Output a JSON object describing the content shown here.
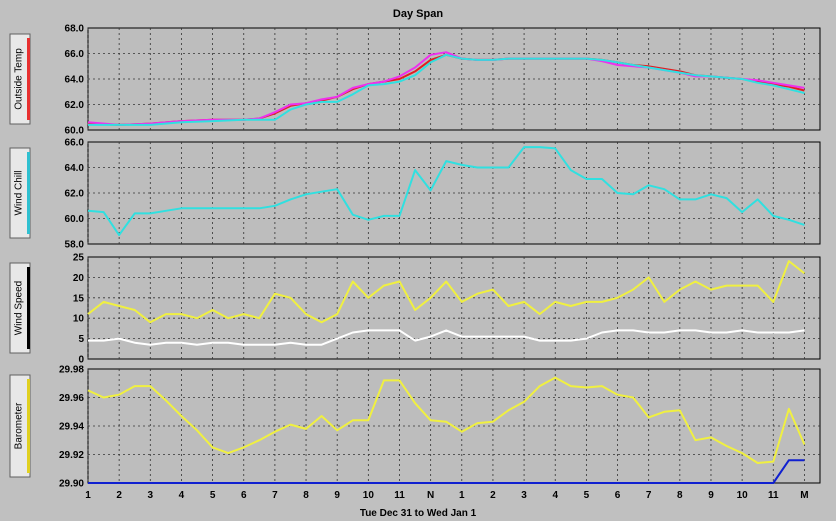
{
  "title": "Day Span",
  "footer": "Tue Dec 31  to  Wed Jan 1",
  "x_ticks": [
    "1",
    "2",
    "3",
    "4",
    "5",
    "6",
    "7",
    "8",
    "9",
    "10",
    "11",
    "N",
    "1",
    "2",
    "3",
    "4",
    "5",
    "6",
    "7",
    "8",
    "9",
    "10",
    "11",
    "M"
  ],
  "chart_data": [
    {
      "type": "line",
      "ylabel": "Outside Temp",
      "ylim": [
        60.0,
        68.0
      ],
      "yticks": [
        "68.0",
        "66.0",
        "64.0",
        "62.0",
        "60.0"
      ],
      "grid": true,
      "label_color": "#e83030",
      "x": [
        1,
        2,
        3,
        4,
        5,
        6,
        6.5,
        7,
        7.5,
        8,
        8.5,
        9,
        9.5,
        10,
        10.5,
        11,
        11.5,
        12,
        12.5,
        13,
        13.5,
        14,
        14.5,
        15,
        15.5,
        16,
        16.5,
        17,
        17.5,
        18,
        18.5,
        19,
        19.5,
        20,
        20.5,
        21,
        21.5,
        22,
        22.5,
        23,
        23.5,
        24
      ],
      "series": [
        {
          "color": "#e02020",
          "values": [
            60.5,
            60.4,
            60.5,
            60.7,
            60.8,
            60.8,
            60.9,
            61.3,
            61.9,
            62.1,
            62.3,
            62.6,
            63.2,
            63.6,
            63.8,
            64.0,
            64.6,
            65.5,
            65.9,
            65.6,
            65.5,
            65.5,
            65.6,
            65.6,
            65.6,
            65.6,
            65.6,
            65.6,
            65.5,
            65.3,
            65.1,
            65.0,
            64.8,
            64.6,
            64.3,
            64.2,
            64.1,
            64.0,
            63.8,
            63.6,
            63.4,
            63.1
          ]
        },
        {
          "color": "#ee30ee",
          "values": [
            60.6,
            60.4,
            60.5,
            60.7,
            60.8,
            60.8,
            60.9,
            61.4,
            62.0,
            62.1,
            62.4,
            62.6,
            63.3,
            63.6,
            63.8,
            64.2,
            64.9,
            65.9,
            66.1,
            65.6,
            65.5,
            65.5,
            65.6,
            65.6,
            65.6,
            65.6,
            65.6,
            65.6,
            65.4,
            65.1,
            65.0,
            64.9,
            64.7,
            64.5,
            64.2,
            64.2,
            64.1,
            64.0,
            63.9,
            63.7,
            63.5,
            63.3
          ]
        },
        {
          "color": "#30e0e0",
          "values": [
            60.4,
            60.4,
            60.4,
            60.6,
            60.7,
            60.8,
            60.8,
            60.8,
            61.6,
            62.0,
            62.2,
            62.2,
            62.8,
            63.5,
            63.6,
            63.8,
            64.3,
            65.3,
            65.9,
            65.6,
            65.5,
            65.5,
            65.6,
            65.6,
            65.6,
            65.6,
            65.6,
            65.6,
            65.5,
            65.3,
            65.1,
            64.9,
            64.7,
            64.5,
            64.3,
            64.2,
            64.1,
            64.0,
            63.7,
            63.5,
            63.2,
            62.9
          ]
        }
      ]
    },
    {
      "type": "line",
      "ylabel": "Wind Chill",
      "ylim": [
        58.0,
        66.0
      ],
      "yticks": [
        "66.0",
        "64.0",
        "62.0",
        "60.0",
        "58.0"
      ],
      "grid": true,
      "label_color": "#30c0d0",
      "x": [
        1,
        1.5,
        2,
        2.5,
        3,
        3.5,
        4,
        4.5,
        5,
        5.5,
        6,
        6.5,
        7,
        7.5,
        8,
        8.5,
        9,
        9.5,
        10,
        10.5,
        11,
        11.5,
        12,
        12.5,
        13,
        13.5,
        14,
        14.5,
        15,
        15.5,
        16,
        16.5,
        17,
        17.5,
        18,
        18.5,
        19,
        19.5,
        20,
        20.5,
        21,
        21.5,
        22,
        22.5,
        23,
        23.5,
        24
      ],
      "series": [
        {
          "color": "#30e0e0",
          "values": [
            60.6,
            60.5,
            58.7,
            60.4,
            60.4,
            60.6,
            60.8,
            60.8,
            60.8,
            60.8,
            60.8,
            60.8,
            61.0,
            61.5,
            61.9,
            62.1,
            62.3,
            60.3,
            59.9,
            60.2,
            60.2,
            63.8,
            62.2,
            64.5,
            64.2,
            64.0,
            64.0,
            64.0,
            65.6,
            65.6,
            65.5,
            63.8,
            63.1,
            63.1,
            62.0,
            61.9,
            62.6,
            62.3,
            61.5,
            61.5,
            61.9,
            61.6,
            60.5,
            61.5,
            60.2,
            59.9,
            59.5
          ]
        }
      ]
    },
    {
      "type": "line",
      "ylabel": "Wind Speed",
      "ylim": [
        0,
        25
      ],
      "yticks": [
        "25",
        "20",
        "15",
        "10",
        "5",
        "0"
      ],
      "grid": true,
      "label_color": "#000000",
      "x": [
        1,
        1.5,
        2,
        2.5,
        3,
        3.5,
        4,
        4.5,
        5,
        5.5,
        6,
        6.5,
        7,
        7.5,
        8,
        8.5,
        9,
        9.5,
        10,
        10.5,
        11,
        11.5,
        12,
        12.5,
        13,
        13.5,
        14,
        14.5,
        15,
        15.5,
        16,
        16.5,
        17,
        17.5,
        18,
        18.5,
        19,
        19.5,
        20,
        20.5,
        21,
        21.5,
        22,
        22.5,
        23,
        23.5,
        24
      ],
      "series": [
        {
          "color": "#f0f040",
          "values": [
            11,
            14,
            13,
            12,
            9,
            11,
            11,
            10,
            12,
            10,
            11,
            10,
            16,
            15,
            11,
            9,
            11,
            19,
            15,
            18,
            19,
            12,
            15,
            19,
            14,
            16,
            17,
            13,
            14,
            11,
            14,
            13,
            14,
            14,
            15,
            17,
            20,
            14,
            17,
            19,
            17,
            18,
            18,
            18,
            14,
            24,
            21
          ]
        },
        {
          "color": "#ffffff",
          "values": [
            4.5,
            4.5,
            5,
            4,
            3.5,
            4,
            4,
            3.5,
            4,
            4,
            3.5,
            3.5,
            3.5,
            4,
            3.5,
            3.5,
            5,
            6.5,
            7,
            7,
            7,
            4.5,
            5.5,
            7,
            5.5,
            5.5,
            5.5,
            5.5,
            5.5,
            4.5,
            4.5,
            4.5,
            5,
            6.5,
            7,
            7,
            6.5,
            6.5,
            7,
            7,
            6.5,
            6.5,
            7,
            6.5,
            6.5,
            6.5,
            7
          ]
        }
      ]
    },
    {
      "type": "line",
      "ylabel": "Barometer",
      "ylim": [
        29.9,
        29.98
      ],
      "yticks": [
        "29.98",
        "29.96",
        "29.94",
        "29.92",
        "29.90"
      ],
      "grid": true,
      "label_color": "#e0d020",
      "x": [
        1,
        1.5,
        2,
        2.5,
        3,
        3.5,
        4,
        4.5,
        5,
        5.5,
        6,
        6.5,
        7,
        7.5,
        8,
        8.5,
        9,
        9.5,
        10,
        10.5,
        11,
        11.5,
        12,
        12.5,
        13,
        13.5,
        14,
        14.5,
        15,
        15.5,
        16,
        16.5,
        17,
        17.5,
        18,
        18.5,
        19,
        19.5,
        20,
        20.5,
        21,
        21.5,
        22,
        22.5,
        23,
        23.5,
        24
      ],
      "series": [
        {
          "color": "#f0f040",
          "values": [
            29.965,
            29.96,
            29.962,
            29.968,
            29.968,
            29.958,
            29.947,
            29.937,
            29.925,
            29.921,
            29.925,
            29.93,
            29.936,
            29.941,
            29.938,
            29.947,
            29.937,
            29.944,
            29.944,
            29.972,
            29.972,
            29.956,
            29.944,
            29.943,
            29.936,
            29.942,
            29.943,
            29.951,
            29.957,
            29.968,
            29.974,
            29.968,
            29.967,
            29.968,
            29.962,
            29.96,
            29.946,
            29.95,
            29.951,
            29.93,
            29.932,
            29.926,
            29.921,
            29.914,
            29.915,
            29.952,
            29.927
          ]
        },
        {
          "color": "#1020d0",
          "values": [
            29.9,
            29.9,
            29.9,
            29.9,
            29.9,
            29.9,
            29.9,
            29.9,
            29.9,
            29.9,
            29.9,
            29.9,
            29.9,
            29.9,
            29.9,
            29.9,
            29.9,
            29.9,
            29.9,
            29.9,
            29.9,
            29.9,
            29.9,
            29.9,
            29.9,
            29.9,
            29.9,
            29.9,
            29.9,
            29.9,
            29.9,
            29.9,
            29.9,
            29.9,
            29.9,
            29.9,
            29.9,
            29.9,
            29.9,
            29.9,
            29.9,
            29.9,
            29.9,
            29.9,
            29.9,
            29.916,
            29.916
          ]
        }
      ]
    }
  ]
}
